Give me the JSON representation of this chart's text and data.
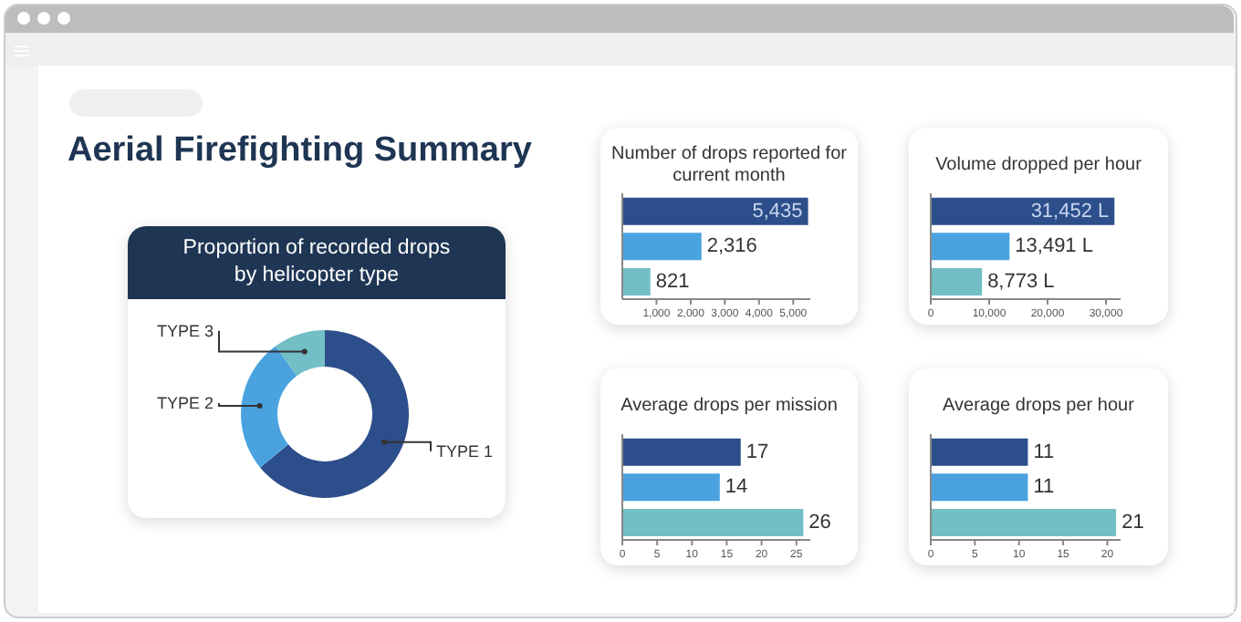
{
  "chart_data": [
    {
      "type": "donut",
      "title": "Proportion of recorded drops by helicopter type",
      "annotations": [
        "Aerial Firefighting Summary"
      ],
      "categories": [
        "TYPE 1",
        "TYPE 2",
        "TYPE 3"
      ],
      "values": [
        64,
        26,
        10
      ],
      "colors": [
        "#2c4e8a",
        "#4aa3df",
        "#72bfc6"
      ]
    },
    {
      "type": "bar",
      "orientation": "horizontal",
      "title": "Number of drops reported for current month",
      "categories": [
        null,
        null,
        null
      ],
      "values": [
        5435,
        2316,
        821
      ],
      "colors": [
        "#2c4e8a",
        "#4aa3df",
        "#72bfc6"
      ],
      "value_labels": [
        "5,435",
        "2,316",
        "821"
      ],
      "xlim": [
        0,
        5500
      ],
      "xticks": [
        {
          "value": 1000,
          "label": "1,000"
        },
        {
          "value": 2000,
          "label": "2,000"
        },
        {
          "value": 3000,
          "label": "3,000"
        },
        {
          "value": 4000,
          "label": "4,000"
        },
        {
          "value": 5000,
          "label": "5,000"
        }
      ]
    },
    {
      "type": "bar",
      "orientation": "horizontal",
      "title": "Volume dropped per hour",
      "categories": [
        null,
        null,
        null
      ],
      "values": [
        31452,
        13491,
        8773
      ],
      "colors": [
        "#2c4e8a",
        "#4aa3df",
        "#72bfc6"
      ],
      "value_labels": [
        "31,452 L",
        "13,491 L",
        "8,773 L"
      ],
      "xlim": [
        0,
        32500
      ],
      "xticks": [
        0,
        {
          "value": 10000,
          "label": "10,000"
        },
        {
          "value": 20000,
          "label": "20,000"
        },
        {
          "value": 30000,
          "label": "30,000"
        }
      ]
    },
    {
      "type": "bar",
      "orientation": "horizontal",
      "title": "Average drops per mission",
      "categories": [
        null,
        null,
        null
      ],
      "values": [
        17,
        14,
        26
      ],
      "colors": [
        "#2c4e8a",
        "#4aa3df",
        "#72bfc6"
      ],
      "data_labels": true,
      "xlim": [
        0,
        27
      ],
      "xticks": [
        0,
        5,
        10,
        15,
        20,
        25
      ]
    },
    {
      "type": "bar",
      "orientation": "horizontal",
      "title": "Average drops per hour",
      "categories": [
        null,
        null,
        null
      ],
      "values": [
        11,
        11,
        21
      ],
      "colors": [
        "#2c4e8a",
        "#4aa3df",
        "#72bfc6"
      ],
      "data_labels": true,
      "xlim": [
        0,
        21.5
      ],
      "xticks": [
        0,
        5,
        10,
        15,
        20
      ]
    }
  ]
}
